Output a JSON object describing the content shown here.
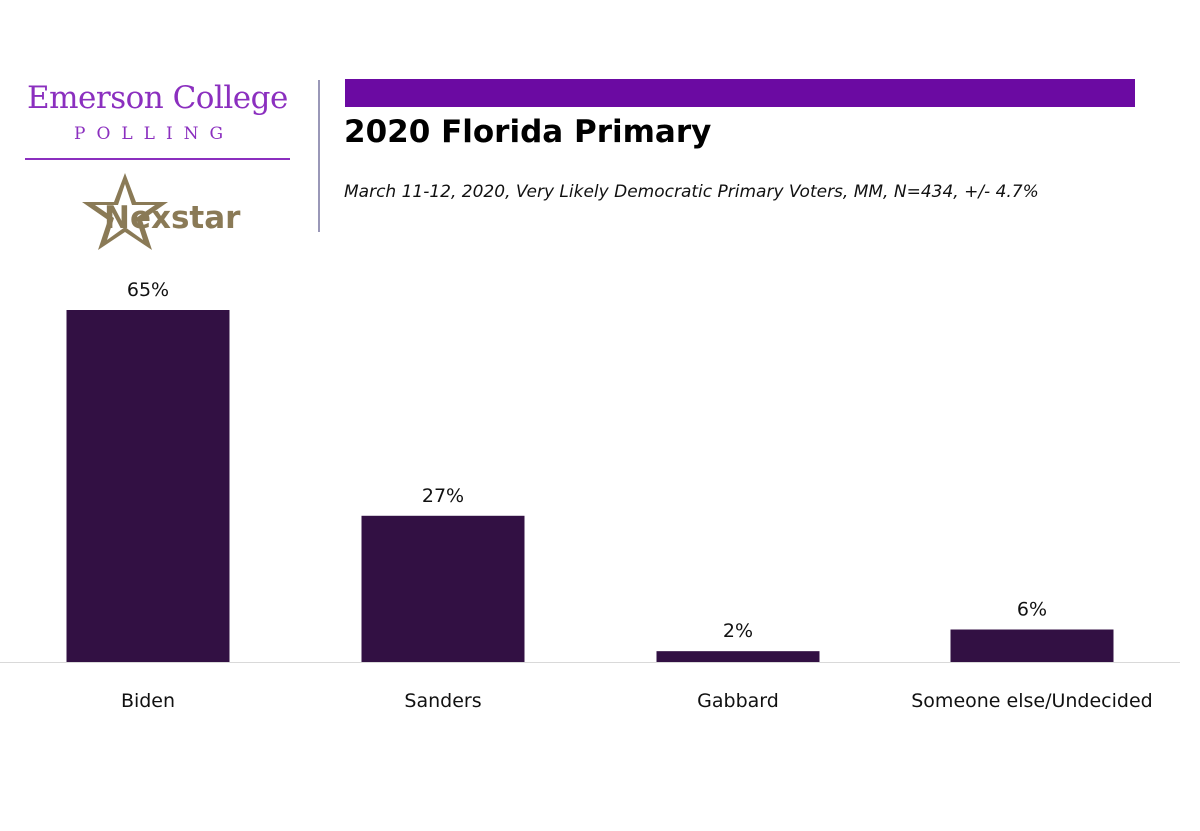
{
  "logo": {
    "line1": "Emerson College",
    "line2": "POLLING",
    "partner": "Nexstar"
  },
  "colors": {
    "accent_bar": "#6b0aa2",
    "bar": "#321043",
    "logo_purple": "#8b2fbf",
    "nexstar_gold": "#8a7a56"
  },
  "chart_data": {
    "type": "bar",
    "title": "2020 Florida Primary",
    "subtitle": "March 11-12, 2020, Very Likely Democratic Primary Voters, MM,  N=434, +/- 4.7%",
    "categories": [
      "Biden",
      "Sanders",
      "Gabbard",
      "Someone else/Undecided"
    ],
    "values": [
      65,
      27,
      2,
      6
    ],
    "data_labels": [
      "65%",
      "27%",
      "2%",
      "6%"
    ],
    "xlabel": "",
    "ylabel": "",
    "ylim": [
      0,
      65
    ],
    "grid": false,
    "legend": "none"
  }
}
